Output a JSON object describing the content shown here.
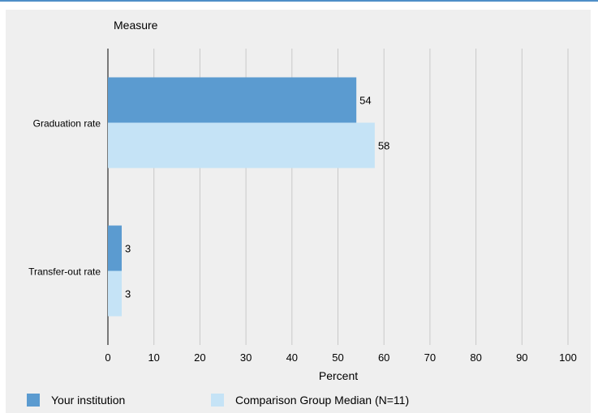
{
  "chart_data": {
    "type": "bar",
    "orientation": "horizontal",
    "title": "Measure",
    "xlabel": "Percent",
    "xlim": [
      0,
      100
    ],
    "xticks": [
      0,
      10,
      20,
      30,
      40,
      50,
      60,
      70,
      80,
      90,
      100
    ],
    "categories": [
      "Graduation rate",
      "Transfer-out rate"
    ],
    "series": [
      {
        "name": "Your institution",
        "values": [
          54,
          3
        ],
        "color": "#5b9bd0"
      },
      {
        "name": "Comparison Group Median (N=11)",
        "values": [
          58,
          3
        ],
        "color": "#c5e3f6"
      }
    ],
    "grid": true,
    "legend_position": "bottom"
  }
}
